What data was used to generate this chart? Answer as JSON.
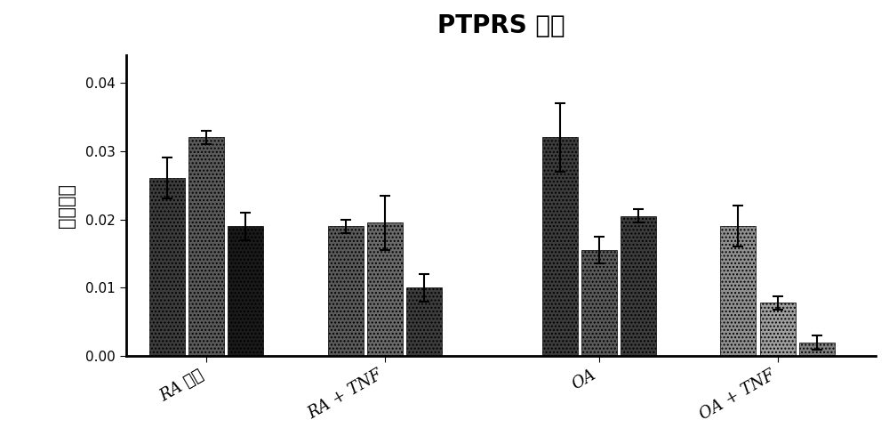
{
  "title": "PTPRS 表达",
  "ylabel": "相对表达",
  "groups": [
    "RA 对照",
    "RA + TNF",
    "OA",
    "OA + TNF"
  ],
  "bar_values": [
    [
      0.026,
      0.032,
      0.019
    ],
    [
      0.019,
      0.0195,
      0.01
    ],
    [
      0.032,
      0.0155,
      0.0205
    ],
    [
      0.019,
      0.0078,
      0.002
    ]
  ],
  "bar_errors": [
    [
      0.003,
      0.001,
      0.002
    ],
    [
      0.001,
      0.004,
      0.002
    ],
    [
      0.005,
      0.002,
      0.001
    ],
    [
      0.003,
      0.001,
      0.001
    ]
  ],
  "ylim": [
    0.0,
    0.044
  ],
  "yticks": [
    0.0,
    0.01,
    0.02,
    0.03,
    0.04
  ],
  "background_color": "#ffffff",
  "title_fontsize": 20,
  "ylabel_fontsize": 15,
  "xlabel_fontsize": 13,
  "group_colors": [
    [
      "#3c3c3c",
      "#5a5a5a",
      "#1a1a1a"
    ],
    [
      "#5a5a5a",
      "#6a6a6a",
      "#3c3c3c"
    ],
    [
      "#3c3c3c",
      "#5a5a5a",
      "#3c3c3c"
    ],
    [
      "#909090",
      "#a0a0a0",
      "#808080"
    ]
  ],
  "group_hatches": [
    [
      "....",
      "....",
      "...."
    ],
    [
      "....",
      "....",
      "...."
    ],
    [
      "....",
      "....",
      "...."
    ],
    [
      "....",
      "....",
      "...."
    ]
  ]
}
